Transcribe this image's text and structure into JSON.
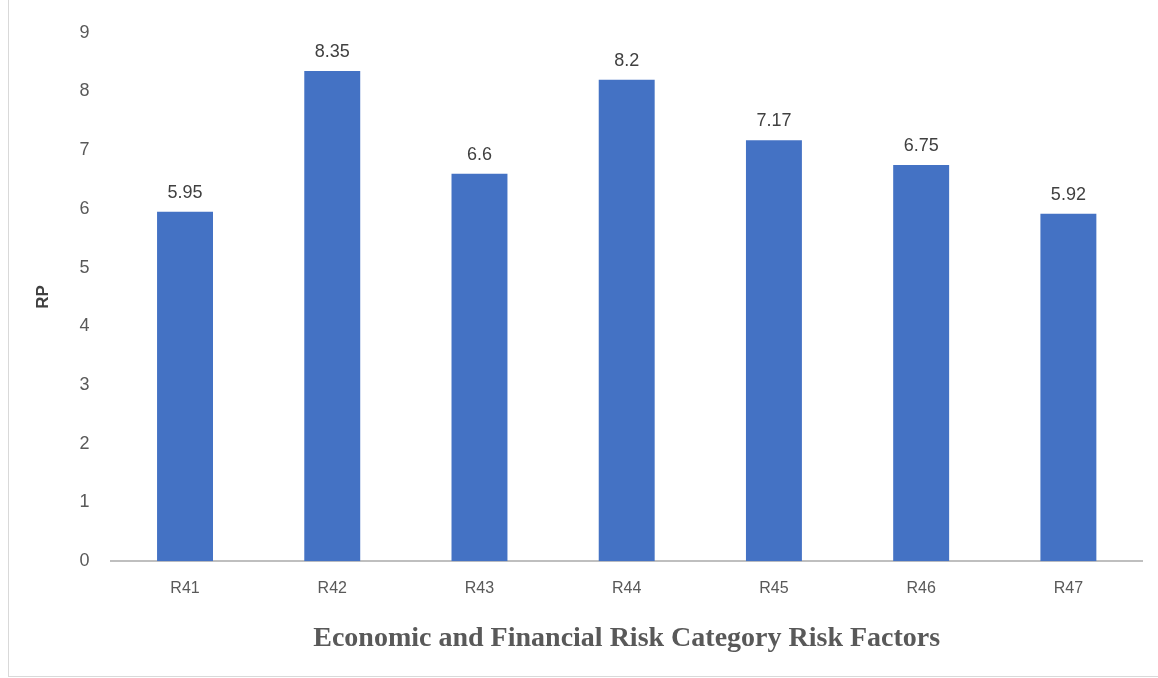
{
  "chart_data": {
    "type": "bar",
    "xlabel": "Economic and Financial Risk Category Risk Factors",
    "ylabel": "RP",
    "categories": [
      "R41",
      "R42",
      "R43",
      "R44",
      "R45",
      "R46",
      "R47"
    ],
    "values": [
      5.95,
      8.35,
      6.6,
      8.2,
      7.17,
      6.75,
      5.92
    ],
    "color": "#4472c4",
    "ylim": [
      0,
      9
    ],
    "yticks": [
      0,
      1,
      2,
      3,
      4,
      5,
      6,
      7,
      8,
      9
    ],
    "grid": false,
    "legend": false,
    "data_labels": true
  }
}
